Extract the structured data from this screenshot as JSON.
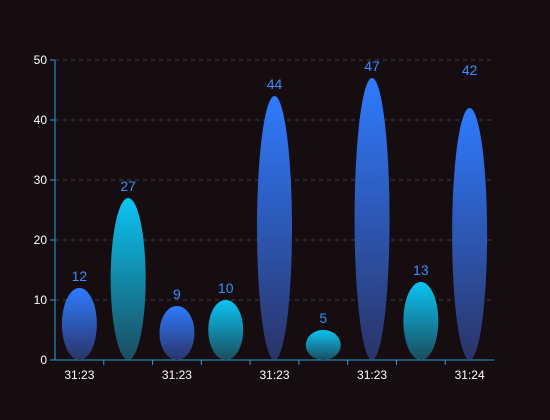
{
  "chart_data": {
    "type": "bar",
    "title": "",
    "xlabel": "",
    "ylabel": "",
    "ylim": [
      0,
      50
    ],
    "yticks": [
      0,
      10,
      20,
      30,
      40,
      50
    ],
    "grid": true,
    "bar_shape": "ellipse",
    "categories": [
      "31:23",
      "",
      "31:23",
      "",
      "31:23",
      "",
      "31:23",
      "",
      "31:24"
    ],
    "x_tick_labels": [
      "31:23",
      "31:23",
      "31:23",
      "31:23",
      "31:24"
    ],
    "series": [
      {
        "values": [
          12,
          27,
          9,
          10,
          44,
          5,
          47,
          13,
          42
        ]
      }
    ],
    "bar_color_scheme": [
      "blue",
      "cyan",
      "blue",
      "cyan",
      "blue",
      "cyan",
      "blue",
      "cyan",
      "blue"
    ]
  },
  "colors": {
    "background": "#160d11",
    "axis": "#2aa0d8",
    "grid": "#3f3f47",
    "tick_label": "#ffffff",
    "blue_top": "#2f7bff",
    "blue_bottom": "#2a3468",
    "cyan_top": "#0bc4f3",
    "cyan_bottom": "#1a4d5e",
    "data_label": "#3a8dff"
  }
}
